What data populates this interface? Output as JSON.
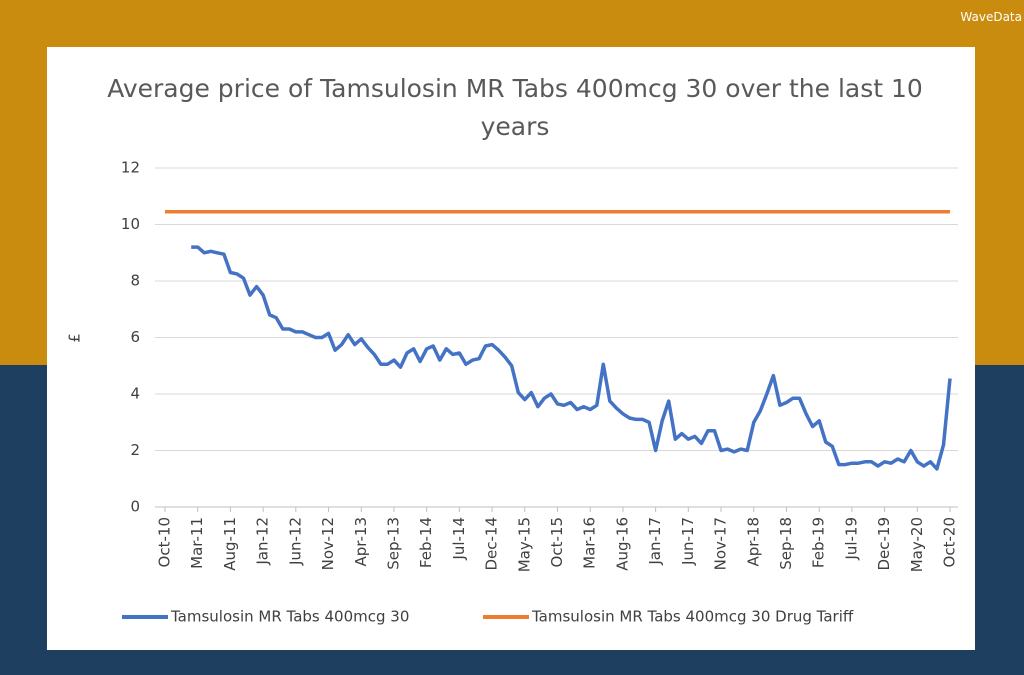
{
  "logo": "WaveData",
  "chart_data": {
    "type": "line",
    "title": "Average price of Tamsulosin MR Tabs 400mcg 30 over the last 10 years",
    "y_label": "£",
    "categories": [
      "Oct-10",
      null,
      null,
      null,
      null,
      "Mar-11",
      null,
      null,
      null,
      null,
      "Aug-11",
      null,
      null,
      null,
      null,
      "Jan-12",
      null,
      null,
      null,
      null,
      "Jun-12",
      null,
      null,
      null,
      null,
      "Nov-12",
      null,
      null,
      null,
      null,
      "Apr-13",
      null,
      null,
      null,
      null,
      "Sep-13",
      null,
      null,
      null,
      null,
      "Feb-14",
      null,
      null,
      null,
      null,
      "Jul-14",
      null,
      null,
      null,
      null,
      "Dec-14",
      null,
      null,
      null,
      null,
      "May-15",
      null,
      null,
      null,
      null,
      "Oct-15",
      null,
      null,
      null,
      null,
      "Mar-16",
      null,
      null,
      null,
      null,
      "Aug-16",
      null,
      null,
      null,
      null,
      "Jan-17",
      null,
      null,
      null,
      null,
      "Jun-17",
      null,
      null,
      null,
      null,
      "Nov-17",
      null,
      null,
      null,
      null,
      "Apr-18",
      null,
      null,
      null,
      null,
      "Sep-18",
      null,
      null,
      null,
      null,
      "Feb-19",
      null,
      null,
      null,
      null,
      "Jul-19",
      null,
      null,
      null,
      null,
      "Dec-19",
      null,
      null,
      null,
      null,
      "May-20",
      null,
      null,
      null,
      null,
      "Oct-20"
    ],
    "series": [
      {
        "name": "Tamsulosin MR Tabs 400mcg 30",
        "color": "#4472c4",
        "values": [
          null,
          null,
          null,
          null,
          9.2,
          9.2,
          9.0,
          9.05,
          9.0,
          8.95,
          8.3,
          8.25,
          8.1,
          7.5,
          7.8,
          7.5,
          6.8,
          6.7,
          6.3,
          6.3,
          6.2,
          6.2,
          6.1,
          6.0,
          6.0,
          6.15,
          5.55,
          5.75,
          6.1,
          5.75,
          5.95,
          5.65,
          5.4,
          5.05,
          5.05,
          5.2,
          4.95,
          5.45,
          5.6,
          5.15,
          5.6,
          5.7,
          5.2,
          5.6,
          5.4,
          5.45,
          5.05,
          5.2,
          5.25,
          5.7,
          5.75,
          5.55,
          5.3,
          5.0,
          4.05,
          3.8,
          4.05,
          3.55,
          3.85,
          4.0,
          3.65,
          3.6,
          3.7,
          3.45,
          3.55,
          3.45,
          3.6,
          5.05,
          3.75,
          3.5,
          3.3,
          3.15,
          3.1,
          3.1,
          3.0,
          2.0,
          3.05,
          3.75,
          2.4,
          2.6,
          2.4,
          2.5,
          2.25,
          2.7,
          2.7,
          2.0,
          2.05,
          1.95,
          2.05,
          2.0,
          3.0,
          3.4,
          4.0,
          4.65,
          3.6,
          3.7,
          3.85,
          3.85,
          3.3,
          2.85,
          3.05,
          2.3,
          2.15,
          1.5,
          1.5,
          1.55,
          1.55,
          1.6,
          1.6,
          1.45,
          1.6,
          1.55,
          1.7,
          1.6,
          2.0,
          1.6,
          1.45,
          1.6,
          1.35,
          2.2,
          4.55
        ]
      },
      {
        "name": "Tamsulosin MR Tabs 400mcg 30 Drug Tariff",
        "color": "#ed7d31",
        "values": [
          10.45,
          10.45,
          10.45,
          10.45,
          10.45,
          10.45,
          10.45,
          10.45,
          10.45,
          10.45,
          10.45,
          10.45,
          10.45,
          10.45,
          10.45,
          10.45,
          10.45,
          10.45,
          10.45,
          10.45,
          10.45,
          10.45,
          10.45,
          10.45,
          10.45,
          10.45,
          10.45,
          10.45,
          10.45,
          10.45,
          10.45,
          10.45,
          10.45,
          10.45,
          10.45,
          10.45,
          10.45,
          10.45,
          10.45,
          10.45,
          10.45,
          10.45,
          10.45,
          10.45,
          10.45,
          10.45,
          10.45,
          10.45,
          10.45,
          10.45,
          10.45,
          10.45,
          10.45,
          10.45,
          10.45,
          10.45,
          10.45,
          10.45,
          10.45,
          10.45,
          10.45,
          10.45,
          10.45,
          10.45,
          10.45,
          10.45,
          10.45,
          10.45,
          10.45,
          10.45,
          10.45,
          10.45,
          10.45,
          10.45,
          10.45,
          10.45,
          10.45,
          10.45,
          10.45,
          10.45,
          10.45,
          10.45,
          10.45,
          10.45,
          10.45,
          10.45,
          10.45,
          10.45,
          10.45,
          10.45,
          10.45,
          10.45,
          10.45,
          10.45,
          10.45,
          10.45,
          10.45,
          10.45,
          10.45,
          10.45,
          10.45,
          10.45,
          10.45,
          10.45,
          10.45,
          10.45,
          10.45,
          10.45,
          10.45,
          10.45,
          10.45,
          10.45,
          10.45,
          10.45,
          10.45,
          10.45,
          10.45,
          10.45,
          10.45,
          10.45,
          10.45
        ]
      }
    ],
    "ylim": [
      0,
      12
    ],
    "yticks": [
      0,
      2,
      4,
      6,
      8,
      10,
      12
    ],
    "grid": true,
    "legend": "bottom"
  }
}
